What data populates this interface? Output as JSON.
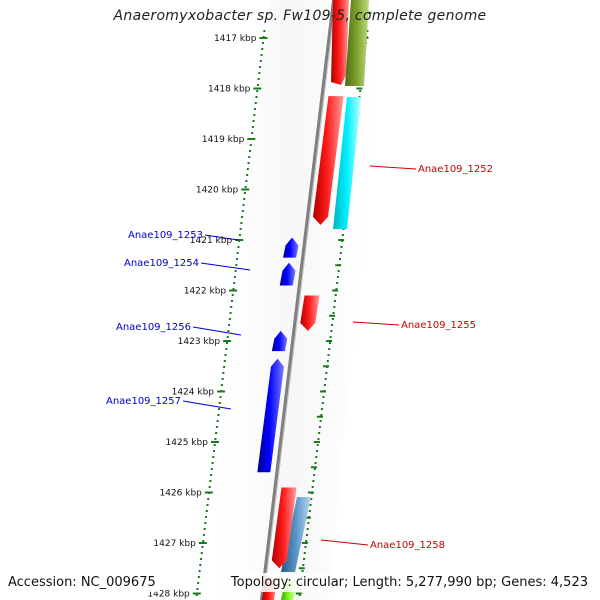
{
  "title": "Anaeromyxobacter sp. Fw109-5, complete genome",
  "accession": "Accession: NC_009675",
  "topology": "Topology: circular; Length: 5,277,990 bp; Genes: 4,523",
  "colors": {
    "backbone": "#8a8a8a",
    "tick": "#1a7a1a",
    "forward_gene": "#ff0000",
    "reverse_gene": "#0000ee",
    "label_forward": "#cc0000",
    "label_reverse": "#0000cc",
    "cyan_gene": "#00e5ee",
    "olive_gene": "#6b8e23",
    "steelblue_gene": "#4682b4",
    "light_green_gene": "#7cfc00"
  },
  "ticks": [
    {
      "label": "1417 kbp",
      "kbp": 1417
    },
    {
      "label": "1418 kbp",
      "kbp": 1418
    },
    {
      "label": "1419 kbp",
      "kbp": 1419
    },
    {
      "label": "1420 kbp",
      "kbp": 1420
    },
    {
      "label": "1421 kbp",
      "kbp": 1421
    },
    {
      "label": "1422 kbp",
      "kbp": 1422
    },
    {
      "label": "1423 kbp",
      "kbp": 1423
    },
    {
      "label": "1424 kbp",
      "kbp": 1424
    },
    {
      "label": "1425 kbp",
      "kbp": 1425
    },
    {
      "label": "1426 kbp",
      "kbp": 1426
    },
    {
      "label": "1427 kbp",
      "kbp": 1427
    },
    {
      "label": "1428 kbp",
      "kbp": 1428
    }
  ],
  "genes": [
    {
      "id": "Anae109_1252",
      "strand": "+",
      "labeled": true,
      "start_kbp": 1418.15,
      "end_kbp": 1420.7,
      "color_key": "forward_gene"
    },
    {
      "id": "Anae109_1253",
      "strand": "-",
      "labeled": true,
      "start_kbp": 1420.95,
      "end_kbp": 1421.35,
      "color_key": "reverse_gene"
    },
    {
      "id": "Anae109_1254",
      "strand": "-",
      "labeled": true,
      "start_kbp": 1421.45,
      "end_kbp": 1421.9,
      "color_key": "reverse_gene"
    },
    {
      "id": "Anae109_1255",
      "strand": "+",
      "labeled": true,
      "start_kbp": 1422.1,
      "end_kbp": 1422.8,
      "color_key": "forward_gene"
    },
    {
      "id": "Anae109_1256",
      "strand": "-",
      "labeled": true,
      "start_kbp": 1422.8,
      "end_kbp": 1423.2,
      "color_key": "reverse_gene"
    },
    {
      "id": "Anae109_1257",
      "strand": "-",
      "labeled": true,
      "start_kbp": 1423.35,
      "end_kbp": 1425.6,
      "color_key": "reverse_gene"
    },
    {
      "id": "Anae109_1258",
      "strand": "+",
      "labeled": true,
      "start_kbp": 1425.9,
      "end_kbp": 1427.5,
      "color_key": "forward_gene"
    }
  ]
}
